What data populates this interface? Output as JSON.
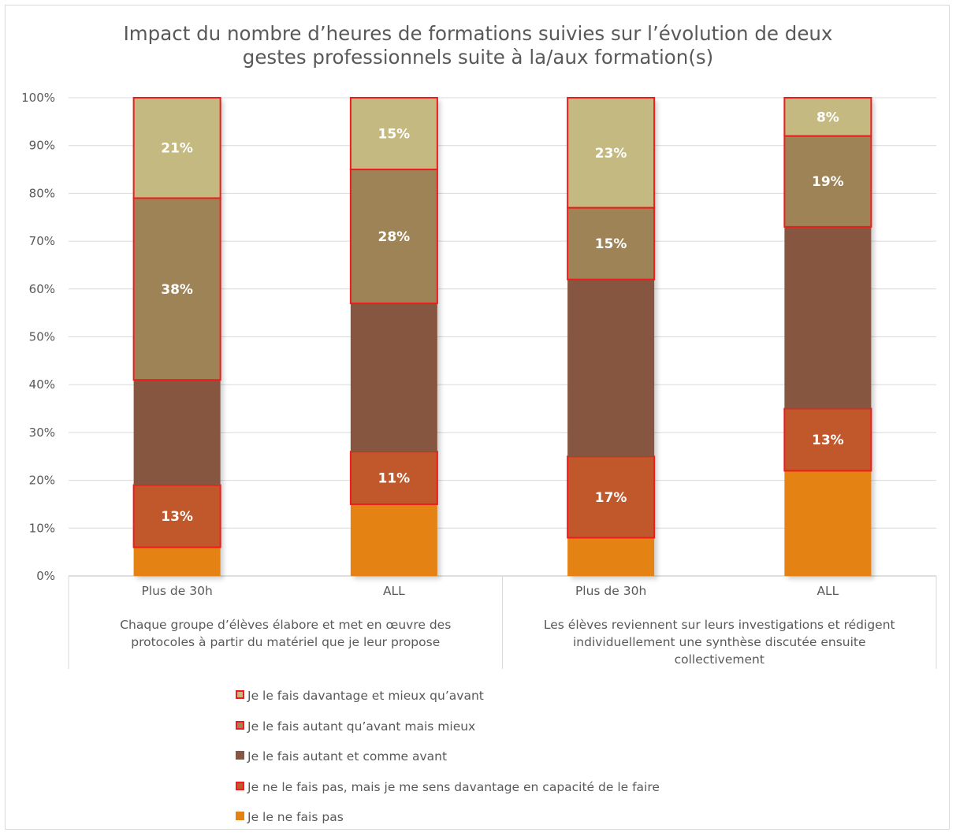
{
  "chart_data": {
    "type": "bar",
    "stacked": true,
    "percent": true,
    "title": "Impact du nombre d’heures de formations suivies sur l’évolution de deux gestes professionnels suite à la/aux formation(s)",
    "title_lines": [
      "Impact du nombre d’heures de formations suivies sur l’évolution de deux",
      "gestes professionnels suite à la/aux formation(s)"
    ],
    "ylim": [
      0,
      100
    ],
    "yticks": [
      "0%",
      "10%",
      "20%",
      "30%",
      "40%",
      "50%",
      "60%",
      "70%",
      "80%",
      "90%",
      "100%"
    ],
    "grid": true,
    "legend_position": "bottom",
    "groups": [
      {
        "label_lines": [
          "Chaque groupe d’élèves élabore et met en œuvre des",
          "protocoles à partir du matériel que je leur propose"
        ],
        "categories": [
          "Plus de 30h",
          "ALL"
        ]
      },
      {
        "label_lines": [
          "Les élèves reviennent sur leurs investigations et rédigent",
          "individuellement une synthèse discutée ensuite",
          "collectivement"
        ],
        "categories": [
          "Plus de 30h",
          "ALL"
        ]
      }
    ],
    "series": [
      {
        "name": "Je le ne fais pas",
        "color": "#e58214",
        "outlined": false,
        "values": [
          6,
          15,
          8,
          22
        ],
        "labels": [
          "",
          "",
          "",
          ""
        ]
      },
      {
        "name": "Je ne le fais pas, mais je me sens davantage en capacité de le faire",
        "color": "#c0582c",
        "outlined": true,
        "values": [
          13,
          11,
          17,
          13
        ],
        "labels": [
          "13%",
          "11%",
          "17%",
          "13%"
        ]
      },
      {
        "name": "Je le fais autant et comme avant",
        "color": "#875640",
        "outlined": false,
        "values": [
          22,
          31,
          37,
          38
        ],
        "labels": [
          "",
          "",
          "",
          ""
        ]
      },
      {
        "name": "Je le fais autant qu’avant mais mieux",
        "color": "#9e8357",
        "outlined": true,
        "values": [
          38,
          28,
          15,
          19
        ],
        "labels": [
          "38%",
          "28%",
          "15%",
          "19%"
        ]
      },
      {
        "name": "Je le fais davantage et mieux qu’avant",
        "color": "#c4b980",
        "outlined": true,
        "values": [
          21,
          15,
          23,
          8
        ],
        "labels": [
          "21%",
          "15%",
          "23%",
          "8%"
        ]
      }
    ],
    "outline_color": "#ee1c1c"
  }
}
